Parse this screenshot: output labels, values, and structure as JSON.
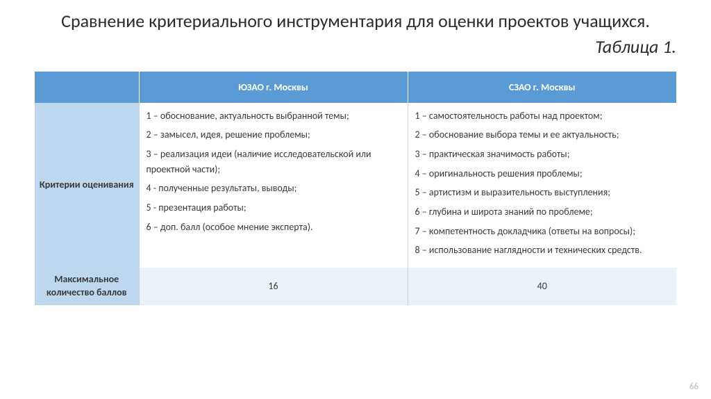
{
  "title": "Сравнение критериального инструментария для оценки проектов учащихся.",
  "subtitle": "Таблица 1.",
  "page_number": "66",
  "colors": {
    "header_bg": "#5b9bd5",
    "rowhead_bg": "#bdd7ee",
    "numrow_bg": "#eaf1f9",
    "border": "#d0d0d0",
    "text": "#3a3a3a"
  },
  "table": {
    "columns": [
      "",
      "ЮЗАО г. Москвы",
      "СЗАО г. Москвы"
    ],
    "rows": [
      {
        "header": "Критерии оценивания",
        "col1_items": [
          "1 – обоснование, актуальность выбранной темы;",
          "2 – замысел, идея, решение проблемы;",
          "3 – реализация идеи (наличие исследовательской или проектной части);",
          "4 - полученные результаты, выводы;",
          "5 - презентация работы;",
          "6 – доп. балл (особое мнение эксперта)."
        ],
        "col2_items": [
          "1 – самостоятельность работы над проектом;",
          "2 – обоснование выбора темы и ее актуальность;",
          "3 – практическая значимость работы;",
          "4 – оригинальность решения проблемы;",
          "5 – артистизм и выразительность выступления;",
          "6 – глубина и широта знаний по проблеме;",
          "7 – компетентность докладчика (ответы на вопросы);",
          "8 – использование наглядности и технических средств."
        ]
      },
      {
        "header": "Максимальное количество баллов",
        "col1_value": "16",
        "col2_value": "40"
      }
    ]
  }
}
